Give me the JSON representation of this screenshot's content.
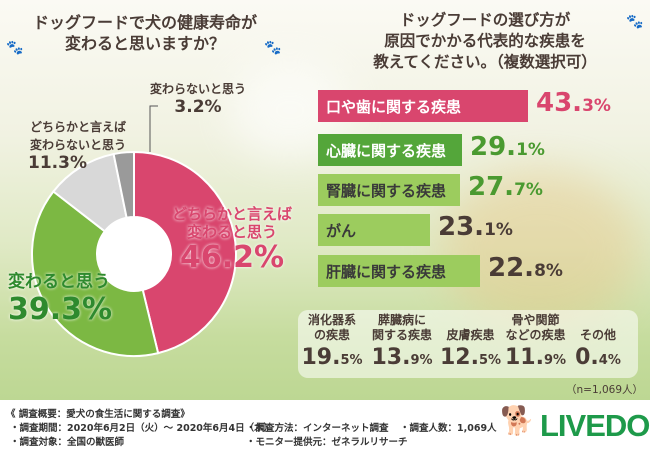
{
  "left": {
    "title_line1": "ドッグフードで犬の健康寿命が",
    "title_line2": "変わると思いますか？"
  },
  "right": {
    "title_line1": "ドッグフードの選び方が",
    "title_line2": "原因でかかる代表的な疾患を",
    "title_line3": "教えてください。（複数選択可）"
  },
  "chart_data": [
    {
      "type": "pie",
      "variant": "donut",
      "title": "ドッグフードで犬の健康寿命が変わると思いますか？",
      "slices": [
        {
          "label": "どちらかと言えば変わると思う",
          "value": 46.2,
          "pct": "46.2%",
          "color": "#d9466e"
        },
        {
          "label": "変わると思う",
          "value": 39.3,
          "pct": "39.3%",
          "color": "#7cb843"
        },
        {
          "label": "どちらかと言えば変わらないと思う",
          "value": 11.3,
          "pct": "11.3%",
          "color": "#d8d8d8"
        },
        {
          "label": "変わらないと思う",
          "value": 3.2,
          "pct": "3.2%",
          "color": "#9a9a9a"
        }
      ]
    },
    {
      "type": "bar",
      "orientation": "horizontal",
      "title": "ドッグフードの選び方が原因でかかる代表的な疾患を教えてください。（複数選択可）",
      "categories": [
        "口や歯に関する疾患",
        "心臓に関する疾患",
        "腎臓に関する疾患",
        "がん",
        "肝臓に関する疾患"
      ],
      "values": [
        43.3,
        29.1,
        27.7,
        23.1,
        22.8
      ],
      "pct": [
        "43.3%",
        "29.1%",
        "27.7%",
        "23.1%",
        "22.8%"
      ],
      "colors": [
        "#d9466e",
        "#54a63a",
        "#8cc152",
        "#8cc152",
        "#8cc152"
      ],
      "others": [
        {
          "label_line1": "消化器系",
          "label_line2": "の疾患",
          "value": 19.5,
          "pct": "19.5%"
        },
        {
          "label_line1": "膵臓病に",
          "label_line2": "関する疾患",
          "value": 13.9,
          "pct": "13.9%"
        },
        {
          "label_line1": "",
          "label_line2": "皮膚疾患",
          "value": 12.5,
          "pct": "12.5%"
        },
        {
          "label_line1": "骨や関節",
          "label_line2": "などの疾患",
          "value": 11.9,
          "pct": "11.9%"
        },
        {
          "label_line1": "",
          "label_line2": "その他",
          "value": 0.4,
          "pct": "0.4%"
        }
      ],
      "note": "（n=1,069人）"
    }
  ],
  "footer": {
    "heading": "《 調査概要：愛犬の食生活に関する調査》",
    "period": "・調査期間：2020年6月2日（火）～ 2020年6月4日（木）",
    "target": "・調査対象：全国の獣医師",
    "method": "・調査方法：インターネット調査",
    "provider": "・モニター提供元：ゼネラルリサーチ",
    "count": "・調査人数：1,069人",
    "logo": "LIVEDOG"
  }
}
